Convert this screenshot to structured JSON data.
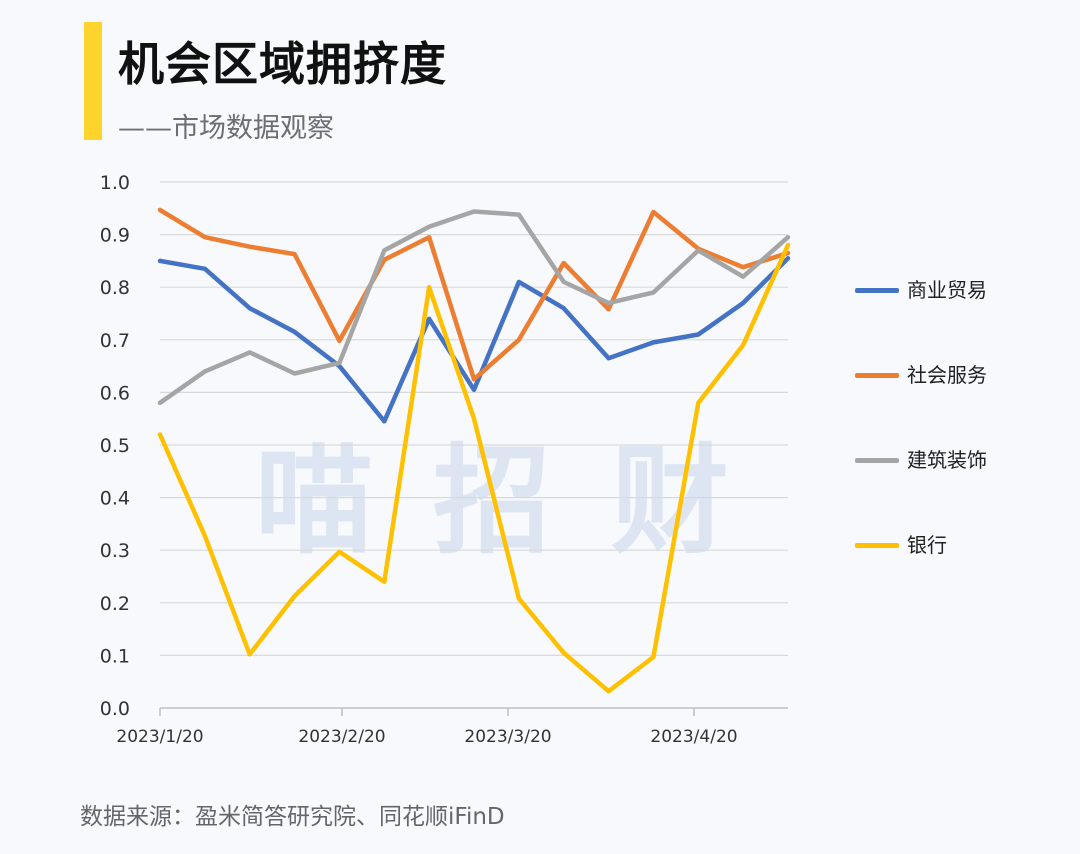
{
  "header": {
    "title": "机会区域拥挤度",
    "subtitle": "——市场数据观察"
  },
  "watermark": "喵招财",
  "source": "数据来源：盈米简答研究院、同花顺iFinD",
  "colors": {
    "accent": "#fdd42c",
    "grid": "#d9d9d9",
    "axis": "#bfbfbf"
  },
  "chart_data": {
    "type": "line",
    "ylim": [
      0,
      1.0
    ],
    "y_ticks": [
      "0.0",
      "0.1",
      "0.2",
      "0.3",
      "0.4",
      "0.5",
      "0.6",
      "0.7",
      "0.8",
      "0.9",
      "1.0"
    ],
    "x_tick_labels": [
      "2023/1/20",
      "2023/2/20",
      "2023/3/20",
      "2023/4/20"
    ],
    "grid": true,
    "legend_position": "right",
    "series": [
      {
        "name": "商业贸易",
        "color": "#4472c4",
        "values": [
          0.85,
          0.835,
          0.76,
          0.715,
          0.65,
          0.545,
          0.74,
          0.605,
          0.81,
          0.76,
          0.665,
          0.695,
          0.71,
          0.77,
          0.855
        ]
      },
      {
        "name": "社会服务",
        "color": "#ed7d31",
        "values": [
          0.947,
          0.895,
          0.877,
          0.863,
          0.698,
          0.852,
          0.895,
          0.625,
          0.7,
          0.846,
          0.758,
          0.943,
          0.873,
          0.838,
          0.865
        ]
      },
      {
        "name": "建筑装饰",
        "color": "#a5a5a5",
        "values": [
          0.58,
          0.64,
          0.676,
          0.636,
          0.656,
          0.87,
          0.915,
          0.944,
          0.938,
          0.81,
          0.77,
          0.79,
          0.87,
          0.82,
          0.895
        ]
      },
      {
        "name": "银行",
        "color": "#ffc000",
        "values": [
          0.52,
          0.327,
          0.102,
          0.213,
          0.297,
          0.24,
          0.8,
          0.55,
          0.208,
          0.105,
          0.032,
          0.097,
          0.58,
          0.69,
          0.88
        ]
      }
    ]
  }
}
